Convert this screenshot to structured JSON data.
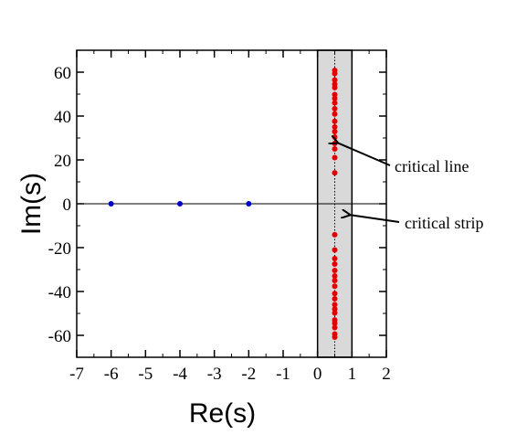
{
  "chart_data": {
    "type": "scatter",
    "title": "",
    "xlabel": "Re(s)",
    "ylabel": "Im(s)",
    "xlim": [
      -7,
      2
    ],
    "ylim": [
      -70,
      70
    ],
    "xticks": [
      -7,
      -6,
      -5,
      -4,
      -3,
      -2,
      -1,
      0,
      1,
      2
    ],
    "yticks": [
      -60,
      -40,
      -20,
      0,
      20,
      40,
      60
    ],
    "grid": false,
    "critical_strip": [
      0,
      1
    ],
    "critical_line": 0.5,
    "colors": {
      "trivial_zeros": "#0000cc",
      "nontrivial_zeros": "#e00000",
      "strip_fill": "#d9d9d9"
    },
    "series": [
      {
        "x": [
          -6,
          -4,
          -2
        ],
        "y": [
          0,
          0,
          0
        ]
      },
      {
        "x": [
          0.5,
          0.5,
          0.5,
          0.5,
          0.5,
          0.5,
          0.5,
          0.5,
          0.5,
          0.5,
          0.5,
          0.5,
          0.5,
          0.5,
          0.5,
          0.5,
          0.5,
          0.5,
          0.5,
          0.5,
          0.5,
          0.5,
          0.5,
          0.5,
          0.5,
          0.5,
          0.5,
          0.5,
          0.5,
          0.5,
          0.5,
          0.5,
          0.5,
          0.5,
          0.5,
          0.5
        ],
        "y": [
          14.13,
          21.02,
          25.01,
          30.42,
          32.94,
          37.59,
          40.92,
          43.33,
          48.01,
          49.77,
          52.97,
          56.45,
          59.35,
          60.83,
          54.5,
          46.0,
          35.0,
          27.5,
          -14.13,
          -21.02,
          -25.01,
          -30.42,
          -32.94,
          -37.59,
          -40.92,
          -43.33,
          -48.01,
          -49.77,
          -52.97,
          -56.45,
          -59.35,
          -60.83,
          -54.5,
          -46.0,
          -35.0,
          -27.5
        ]
      }
    ],
    "annotations": [
      {
        "text": "critical line",
        "point_x": 0.5,
        "point_y": 28
      },
      {
        "text": "critical strip",
        "point_x": 0.85,
        "point_y": -5
      }
    ]
  }
}
